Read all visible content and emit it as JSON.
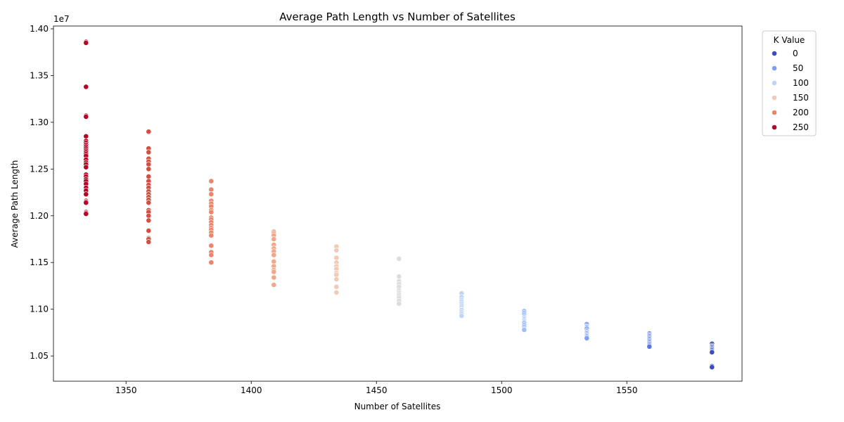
{
  "chart_data": {
    "type": "scatter",
    "title": "Average Path Length vs Number of Satellites",
    "xlabel": "Number of Satellites",
    "ylabel": "Average Path Length",
    "y_offset_label": "1e7",
    "xlim": [
      1321,
      1596
    ],
    "ylim": [
      10230000,
      14030000
    ],
    "x_ticks": [
      1350,
      1400,
      1450,
      1500,
      1550
    ],
    "x_tick_labels": [
      "1350",
      "1400",
      "1450",
      "1500",
      "1550"
    ],
    "y_ticks": [
      10500000,
      11000000,
      11500000,
      12000000,
      12500000,
      13000000,
      13500000,
      14000000
    ],
    "y_tick_labels": [
      "1.05",
      "1.10",
      "1.15",
      "1.20",
      "1.25",
      "1.30",
      "1.35",
      "1.40"
    ],
    "grid": false,
    "legend": {
      "title": "K Value",
      "placement": "outside-right-top",
      "entries": [
        {
          "label": "0",
          "color": "#3b4cc0"
        },
        {
          "label": "50",
          "color": "#7b9ff9"
        },
        {
          "label": "100",
          "color": "#c0d4f5"
        },
        {
          "label": "150",
          "color": "#f2cbb7"
        },
        {
          "label": "200",
          "color": "#ee8468"
        },
        {
          "label": "250",
          "color": "#b40426"
        }
      ]
    },
    "groups": [
      {
        "x": 1334,
        "color": "#b40426",
        "y": [
          13860000,
          13850000,
          13380000,
          13070000,
          13060000,
          12850000,
          12800000,
          12780000,
          12760000,
          12740000,
          12720000,
          12700000,
          12680000,
          12660000,
          12640000,
          12600000,
          12570000,
          12550000,
          12520000,
          12440000,
          12420000,
          12390000,
          12370000,
          12340000,
          12300000,
          12270000,
          12230000,
          12160000,
          12150000,
          12140000,
          12040000,
          12030000,
          12020000
        ]
      },
      {
        "x": 1359,
        "color": "#d44e41",
        "y": [
          12900000,
          12720000,
          12680000,
          12610000,
          12580000,
          12550000,
          12500000,
          12420000,
          12370000,
          12330000,
          12300000,
          12260000,
          12230000,
          12200000,
          12170000,
          12140000,
          12060000,
          12040000,
          12000000,
          11950000,
          11840000,
          11760000,
          11750000,
          11720000
        ]
      },
      {
        "x": 1384,
        "color": "#ee8468",
        "y": [
          12370000,
          12280000,
          12230000,
          12160000,
          12130000,
          12100000,
          12060000,
          12040000,
          11980000,
          11960000,
          11930000,
          11900000,
          11870000,
          11850000,
          11820000,
          11790000,
          11680000,
          11610000,
          11580000,
          11500000
        ]
      },
      {
        "x": 1409,
        "color": "#f4a688",
        "y": [
          11830000,
          11810000,
          11790000,
          11750000,
          11690000,
          11650000,
          11620000,
          11580000,
          11510000,
          11460000,
          11420000,
          11400000,
          11340000,
          11260000
        ]
      },
      {
        "x": 1434,
        "color": "#f2cbb7",
        "y": [
          11670000,
          11630000,
          11550000,
          11500000,
          11460000,
          11430000,
          11390000,
          11370000,
          11320000,
          11240000,
          11180000
        ]
      },
      {
        "x": 1459,
        "color": "#dddcdc",
        "y": [
          11540000,
          11350000,
          11300000,
          11270000,
          11240000,
          11200000,
          11180000,
          11160000,
          11140000,
          11120000,
          11090000,
          11060000
        ]
      },
      {
        "x": 1484,
        "color": "#c0d4f5",
        "y": [
          11170000,
          11130000,
          11100000,
          11080000,
          11060000,
          11040000,
          11020000,
          11000000,
          10990000,
          10970000,
          10950000,
          10930000
        ]
      },
      {
        "x": 1509,
        "color": "#9ebeff",
        "y": [
          10980000,
          10960000,
          10940000,
          10920000,
          10910000,
          10900000,
          10890000,
          10880000,
          10870000,
          10860000,
          10850000,
          10830000,
          10810000,
          10790000,
          10780000
        ]
      },
      {
        "x": 1534,
        "color": "#7b9ff9",
        "y": [
          10840000,
          10820000,
          10810000,
          10800000,
          10790000,
          10770000,
          10760000,
          10750000,
          10740000,
          10730000,
          10720000,
          10710000,
          10700000,
          10690000
        ]
      },
      {
        "x": 1559,
        "color": "#5977e3",
        "y": [
          10740000,
          10730000,
          10720000,
          10710000,
          10700000,
          10690000,
          10680000,
          10670000,
          10660000,
          10650000,
          10640000,
          10630000,
          10620000,
          10610000,
          10600000
        ]
      },
      {
        "x": 1584,
        "color": "#3b4cc0",
        "y": [
          10630000,
          10610000,
          10600000,
          10590000,
          10580000,
          10570000,
          10560000,
          10550000,
          10540000,
          10390000,
          10380000
        ]
      }
    ]
  }
}
